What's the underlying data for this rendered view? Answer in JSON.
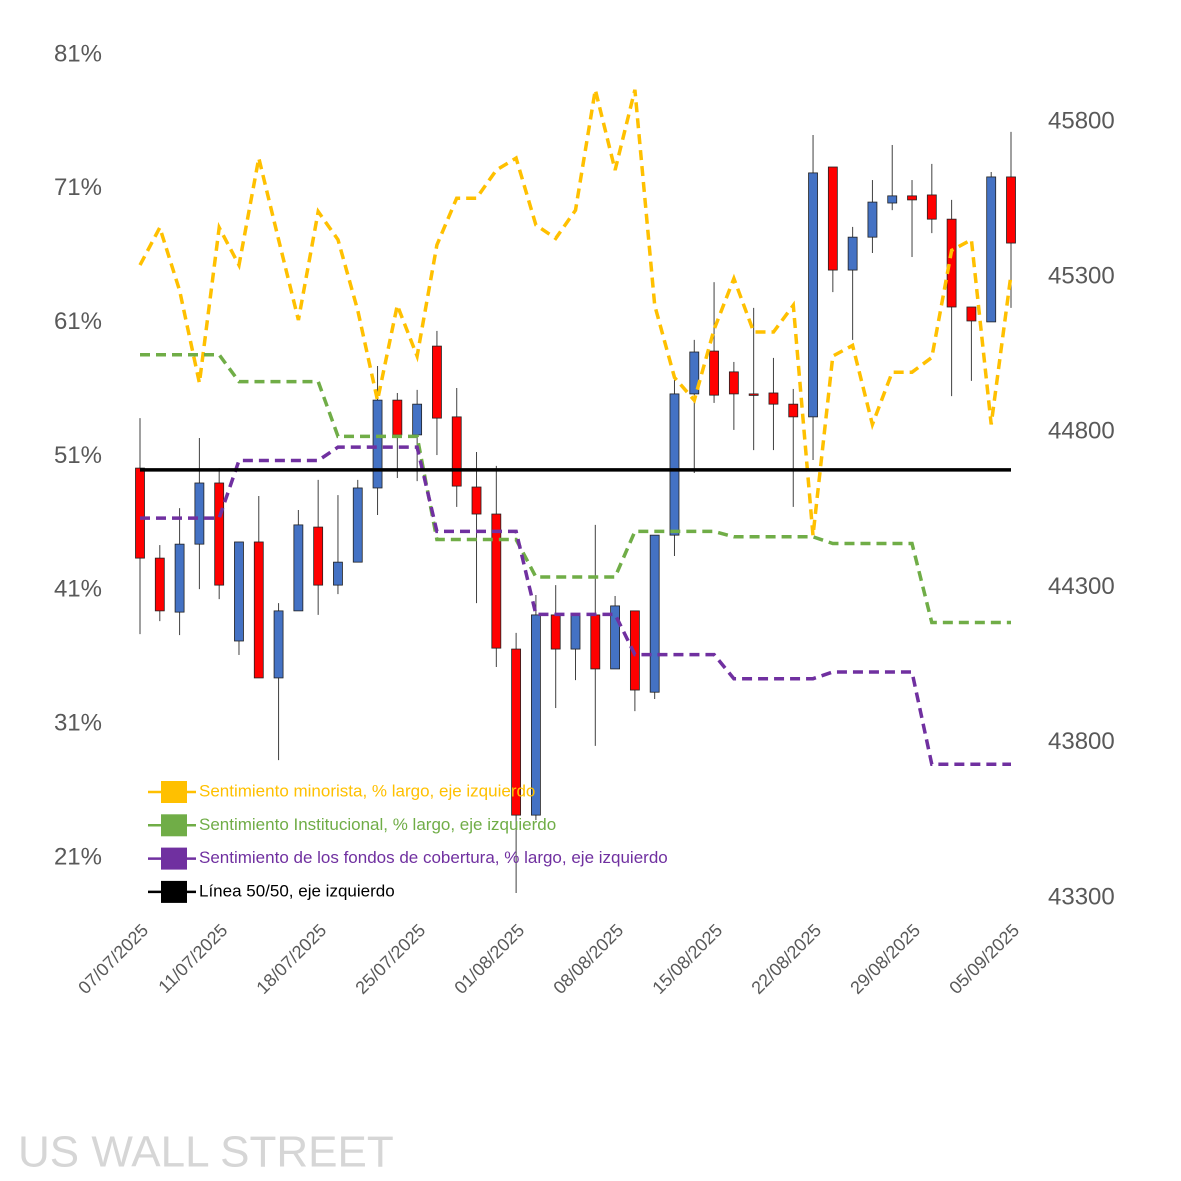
{
  "chart_data": {
    "type": "candlestick",
    "categories": [
      "07/07/2025",
      null,
      null,
      null,
      "11/07/2025",
      null,
      null,
      null,
      null,
      "18/07/2025",
      null,
      null,
      null,
      null,
      "25/07/2025",
      null,
      null,
      null,
      null,
      "01/08/2025",
      null,
      null,
      null,
      null,
      "08/08/2025",
      null,
      null,
      null,
      null,
      "15/08/2025",
      null,
      null,
      null,
      null,
      "22/08/2025",
      null,
      null,
      null,
      null,
      "29/08/2025",
      null,
      null,
      null,
      null,
      "05/09/2025"
    ],
    "open": [
      44685,
      44395,
      44221,
      44440,
      44637,
      44128,
      44447,
      44009,
      44225,
      44495,
      44308,
      44382,
      44621,
      44904,
      44792,
      45078,
      44850,
      44624,
      44537,
      44102,
      43567,
      44212,
      44102,
      44212,
      44038,
      44225,
      43963,
      44469,
      44924,
      45062,
      44995,
      44924,
      44927,
      44891,
      44850,
      45655,
      45323,
      45429,
      45539,
      45562,
      45565,
      45487,
      45204,
      45156,
      45623
    ],
    "high": [
      44846,
      44437,
      44556,
      44782,
      44685,
      44447,
      44595,
      44250,
      44550,
      44647,
      44598,
      44647,
      45014,
      44927,
      44937,
      45127,
      44943,
      44737,
      44692,
      44154,
      44276,
      44308,
      44212,
      44502,
      44273,
      44225,
      44469,
      44969,
      45098,
      45284,
      45027,
      45201,
      45040,
      44940,
      45758,
      45655,
      45462,
      45613,
      45726,
      45613,
      45665,
      45549,
      45204,
      45639,
      45768
    ],
    "low": [
      44150,
      44192,
      44147,
      44295,
      44263,
      44083,
      44009,
      43744,
      44225,
      44212,
      44279,
      44382,
      44534,
      44653,
      44643,
      44727,
      44560,
      44250,
      44044,
      43316,
      43551,
      43912,
      44002,
      43790,
      44038,
      43902,
      43941,
      44402,
      44669,
      44895,
      44808,
      44743,
      44743,
      44560,
      44711,
      45252,
      45098,
      45378,
      45516,
      45365,
      45442,
      44917,
      44966,
      45156,
      45201
    ],
    "close": [
      44395,
      44225,
      44440,
      44637,
      44308,
      44447,
      44009,
      44225,
      44502,
      44308,
      44382,
      44621,
      44904,
      44792,
      44891,
      44846,
      44627,
      44537,
      44105,
      43567,
      44212,
      44102,
      44212,
      44038,
      44241,
      43970,
      44469,
      44924,
      45059,
      44920,
      44924,
      44920,
      44891,
      44850,
      45636,
      45323,
      45429,
      45542,
      45562,
      45549,
      45487,
      45204,
      45159,
      45623,
      45410
    ],
    "up_color": "#4472c4",
    "down_color": "#ff0000",
    "candle_axis": "y2",
    "series": [
      {
        "name": "Sentimiento minorista, % largo, eje izquierdo",
        "color": "#ffc000",
        "line_style": "dashed",
        "values": [
          65.3,
          68.1,
          63.4,
          56.5,
          68.1,
          65.3,
          73.3,
          67.2,
          61.2,
          69.3,
          67.2,
          61.9,
          55.2,
          62.3,
          58.5,
          66.8,
          70.3,
          70.3,
          72.4,
          73.3,
          68.3,
          67.3,
          69.4,
          78.4,
          72.4,
          78.4,
          62.3,
          56.9,
          55.2,
          60.5,
          64.3,
          60.3,
          60.3,
          62.3,
          45.1,
          58.5,
          59.3,
          53.4,
          57.3,
          57.3,
          58.4,
          66.4,
          67.2,
          53.4,
          64.6
        ]
      },
      {
        "name": "Sentimiento Institucional, % largo, eje izquierdo",
        "color": "#70ad47",
        "line_style": "dashed",
        "values": [
          58.6,
          58.6,
          58.6,
          58.6,
          58.6,
          56.6,
          56.6,
          56.6,
          56.6,
          56.6,
          52.5,
          52.5,
          52.5,
          52.5,
          52.5,
          44.8,
          44.8,
          44.8,
          44.8,
          44.8,
          42.0,
          42.0,
          42.0,
          42.0,
          42.0,
          45.4,
          45.4,
          45.4,
          45.4,
          45.4,
          45.0,
          45.0,
          45.0,
          45.0,
          45.0,
          44.5,
          44.5,
          44.5,
          44.5,
          44.5,
          38.6,
          38.6,
          38.6,
          38.6,
          38.6
        ]
      },
      {
        "name": "Sentimiento de los fondos de cobertura, % largo, eje izquierdo",
        "color": "#7030a0",
        "line_style": "dashed",
        "values": [
          46.4,
          46.4,
          46.4,
          46.4,
          46.4,
          50.7,
          50.7,
          50.7,
          50.7,
          50.7,
          51.7,
          51.7,
          51.7,
          51.7,
          51.7,
          45.4,
          45.4,
          45.4,
          45.4,
          45.4,
          39.2,
          39.2,
          39.2,
          39.2,
          39.2,
          36.2,
          36.2,
          36.2,
          36.2,
          36.2,
          34.4,
          34.4,
          34.4,
          34.4,
          34.4,
          34.9,
          34.9,
          34.9,
          34.9,
          34.9,
          28.0,
          28.0,
          28.0,
          28.0,
          28.0
        ]
      },
      {
        "name": "Línea 50/50, eje izquierdo",
        "color": "#000000",
        "line_style": "solid",
        "values": [
          50,
          50,
          50,
          50,
          50,
          50,
          50,
          50,
          50,
          50,
          50,
          50,
          50,
          50,
          50,
          50,
          50,
          50,
          50,
          50,
          50,
          50,
          50,
          50,
          50,
          50,
          50,
          50,
          50,
          50,
          50,
          50,
          50,
          50,
          50,
          50,
          50,
          50,
          50,
          50,
          50,
          50,
          50,
          50,
          50
        ]
      }
    ],
    "ylim": [
      21,
      81
    ],
    "yticks": [
      {
        "value": 21,
        "label": "21%"
      },
      {
        "value": 31,
        "label": "31%"
      },
      {
        "value": 41,
        "label": "41%"
      },
      {
        "value": 51,
        "label": "51%"
      },
      {
        "value": 61,
        "label": "61%"
      },
      {
        "value": 71,
        "label": "71%"
      },
      {
        "value": 81,
        "label": "81%"
      }
    ],
    "y2lim": [
      43300,
      45800
    ],
    "y2ticks": [
      43300,
      43800,
      44300,
      44800,
      45300,
      45800
    ],
    "legend": "lower left",
    "watermark": "US WALL STREET"
  }
}
